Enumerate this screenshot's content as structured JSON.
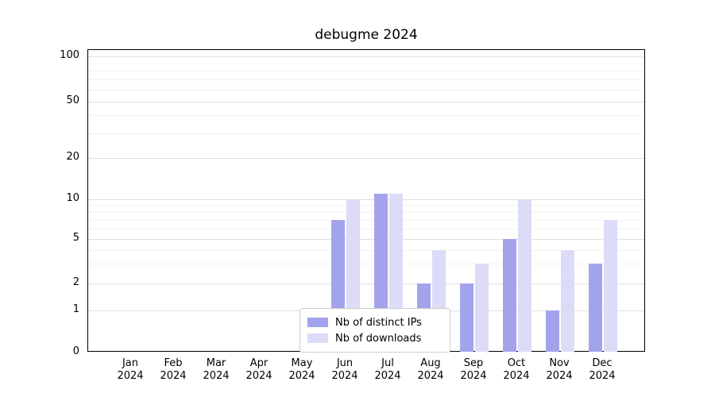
{
  "chart_data": {
    "type": "bar",
    "title": "debugme 2024",
    "categories": [
      "Jan",
      "Feb",
      "Mar",
      "Apr",
      "May",
      "Jun",
      "Jul",
      "Aug",
      "Sep",
      "Oct",
      "Nov",
      "Dec"
    ],
    "year": "2024",
    "series": [
      {
        "name": "Nb of distinct IPs",
        "color": "#a3a3ec",
        "values": [
          0,
          0,
          0,
          0,
          0,
          7,
          11,
          2,
          2,
          5,
          1,
          3
        ]
      },
      {
        "name": "Nb of downloads",
        "color": "#dcdcf8",
        "values": [
          0,
          0,
          0,
          0,
          0,
          10,
          11,
          4,
          3,
          10,
          4,
          7
        ]
      }
    ],
    "yscale": "symlog",
    "ytick_labels": [
      "0",
      "1",
      "2",
      "5",
      "10",
      "20",
      "50",
      "100"
    ],
    "yticks": [
      0,
      1,
      2,
      5,
      10,
      20,
      50,
      100
    ],
    "minor_gridlines": [
      3,
      4,
      6,
      7,
      8,
      9,
      30,
      40,
      60,
      70,
      80,
      90
    ],
    "ylim": [
      0,
      100
    ],
    "xlabel": "",
    "ylabel": "",
    "grid": true,
    "legend_position": "lower center"
  },
  "colors": {
    "background": "#ffffff",
    "plot_border": "#000000",
    "major_grid": "#e0e0e0",
    "minor_grid": "#f1f1f1",
    "legend_border": "#cccccc"
  }
}
